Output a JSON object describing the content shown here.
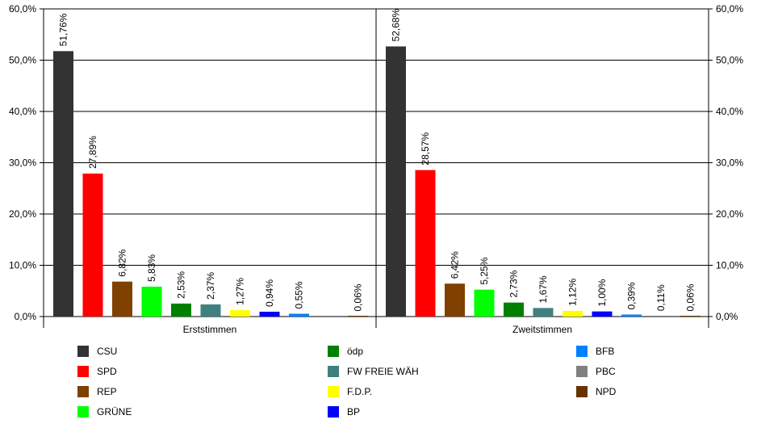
{
  "chart_data": {
    "type": "bar",
    "y_axis": {
      "min": 0,
      "max": 60,
      "step": 10,
      "tick_labels": [
        "0,0%",
        "10,0%",
        "20,0%",
        "30,0%",
        "40,0%",
        "50,0%",
        "60,0%"
      ],
      "show_on": "left-and-right"
    },
    "grid": true,
    "groups": [
      {
        "label": "Erststimmen",
        "bars": [
          {
            "party": "CSU",
            "value": 51.76,
            "label": "51,76%"
          },
          {
            "party": "SPD",
            "value": 27.89,
            "label": "27,89%"
          },
          {
            "party": "REP",
            "value": 6.82,
            "label": "6,82%"
          },
          {
            "party": "GRÜNE",
            "value": 5.83,
            "label": "5,83%"
          },
          {
            "party": "ödp",
            "value": 2.53,
            "label": "2,53%"
          },
          {
            "party": "FW FREIE WÄH",
            "value": 2.37,
            "label": "2,37%"
          },
          {
            "party": "F.D.P.",
            "value": 1.27,
            "label": "1,27%"
          },
          {
            "party": "BP",
            "value": 0.94,
            "label": "0,94%"
          },
          {
            "party": "BFB",
            "value": 0.55,
            "label": "0,55%"
          },
          {
            "party": "PBC",
            "value": null,
            "label": ""
          },
          {
            "party": "NPD",
            "value": 0.06,
            "label": "0,06%"
          }
        ]
      },
      {
        "label": "Zweitstimmen",
        "bars": [
          {
            "party": "CSU",
            "value": 52.68,
            "label": "52,68%"
          },
          {
            "party": "SPD",
            "value": 28.57,
            "label": "28,57%"
          },
          {
            "party": "REP",
            "value": 6.42,
            "label": "6,42%"
          },
          {
            "party": "GRÜNE",
            "value": 5.25,
            "label": "5,25%"
          },
          {
            "party": "ödp",
            "value": 2.73,
            "label": "2,73%"
          },
          {
            "party": "FW FREIE WÄH",
            "value": 1.67,
            "label": "1,67%"
          },
          {
            "party": "F.D.P.",
            "value": 1.12,
            "label": "1,12%"
          },
          {
            "party": "BP",
            "value": 1.0,
            "label": "1,00%"
          },
          {
            "party": "BFB",
            "value": 0.39,
            "label": "0,39%"
          },
          {
            "party": "PBC",
            "value": 0.11,
            "label": "0,11%"
          },
          {
            "party": "NPD",
            "value": 0.06,
            "label": "0,06%"
          }
        ]
      }
    ],
    "legend": {
      "placement": "bottom",
      "entries": [
        {
          "name": "CSU",
          "color": "#333333"
        },
        {
          "name": "SPD",
          "color": "#ff0000"
        },
        {
          "name": "REP",
          "color": "#804000"
        },
        {
          "name": "GRÜNE",
          "color": "#00ff00"
        },
        {
          "name": "ödp",
          "color": "#008000"
        },
        {
          "name": "FW FREIE WÄH",
          "color": "#408080"
        },
        {
          "name": "F.D.P.",
          "color": "#ffff00"
        },
        {
          "name": "BP",
          "color": "#0000ff"
        },
        {
          "name": "BFB",
          "color": "#0080ff"
        },
        {
          "name": "PBC",
          "color": "#808080"
        },
        {
          "name": "NPD",
          "color": "#663300"
        }
      ]
    }
  }
}
